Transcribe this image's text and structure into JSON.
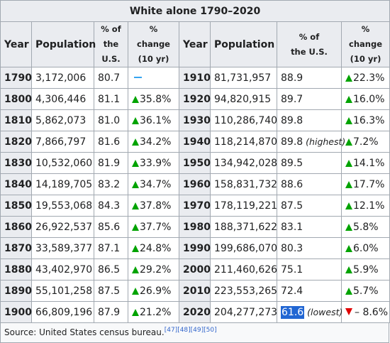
{
  "title": "White alone 1790–2020",
  "headers": {
    "year": "Year",
    "population": "Population",
    "pct_line1": "% of",
    "pct_line2": "the U.S.",
    "chg_line1": "% change",
    "chg_line2": "(10 yr)"
  },
  "rows": [
    {
      "left": {
        "year": "1790",
        "population": "3,172,006",
        "pct": "80.7",
        "change": "",
        "trend": "none"
      },
      "right": {
        "year": "1910",
        "population": "81,731,957",
        "pct": "88.9",
        "change": "22.3%",
        "trend": "up"
      }
    },
    {
      "left": {
        "year": "1800",
        "population": "4,306,446",
        "pct": "81.1",
        "change": "35.8%",
        "trend": "up"
      },
      "right": {
        "year": "1920",
        "population": "94,820,915",
        "pct": "89.7",
        "change": "16.0%",
        "trend": "up"
      }
    },
    {
      "left": {
        "year": "1810",
        "population": "5,862,073",
        "pct": "81.0",
        "change": "36.1%",
        "trend": "up"
      },
      "right": {
        "year": "1930",
        "population": "110,286,740",
        "pct": "89.8",
        "change": "16.3%",
        "trend": "up"
      }
    },
    {
      "left": {
        "year": "1820",
        "population": "7,866,797",
        "pct": "81.6",
        "change": "34.2%",
        "trend": "up"
      },
      "right": {
        "year": "1940",
        "population": "118,214,870",
        "pct": "89.8",
        "note": "(highest)",
        "change": "7.2%",
        "trend": "up"
      }
    },
    {
      "left": {
        "year": "1830",
        "population": "10,532,060",
        "pct": "81.9",
        "change": "33.9%",
        "trend": "up"
      },
      "right": {
        "year": "1950",
        "population": "134,942,028",
        "pct": "89.5",
        "change": "14.1%",
        "trend": "up"
      }
    },
    {
      "left": {
        "year": "1840",
        "population": "14,189,705",
        "pct": "83.2",
        "change": "34.7%",
        "trend": "up"
      },
      "right": {
        "year": "1960",
        "population": "158,831,732",
        "pct": "88.6",
        "change": "17.7%",
        "trend": "up"
      }
    },
    {
      "left": {
        "year": "1850",
        "population": "19,553,068",
        "pct": "84.3",
        "change": "37.8%",
        "trend": "up"
      },
      "right": {
        "year": "1970",
        "population": "178,119,221",
        "pct": "87.5",
        "change": "12.1%",
        "trend": "up"
      }
    },
    {
      "left": {
        "year": "1860",
        "population": "26,922,537",
        "pct": "85.6",
        "change": "37.7%",
        "trend": "up"
      },
      "right": {
        "year": "1980",
        "population": "188,371,622",
        "pct": "83.1",
        "change": "5.8%",
        "trend": "up"
      }
    },
    {
      "left": {
        "year": "1870",
        "population": "33,589,377",
        "pct": "87.1",
        "change": "24.8%",
        "trend": "up"
      },
      "right": {
        "year": "1990",
        "population": "199,686,070",
        "pct": "80.3",
        "change": "6.0%",
        "trend": "up"
      }
    },
    {
      "left": {
        "year": "1880",
        "population": "43,402,970",
        "pct": "86.5",
        "change": "29.2%",
        "trend": "up"
      },
      "right": {
        "year": "2000",
        "population": "211,460,626",
        "pct": "75.1",
        "change": "5.9%",
        "trend": "up"
      }
    },
    {
      "left": {
        "year": "1890",
        "population": "55,101,258",
        "pct": "87.5",
        "change": "26.9%",
        "trend": "up"
      },
      "right": {
        "year": "2010",
        "population": "223,553,265",
        "pct": "72.4",
        "change": "5.7%",
        "trend": "up"
      }
    },
    {
      "left": {
        "year": "1900",
        "population": "66,809,196",
        "pct": "87.9",
        "change": "21.2%",
        "trend": "up"
      },
      "right": {
        "year": "2020",
        "population": "204,277,273",
        "pct": "61.6",
        "pct_selected": true,
        "note": "(lowest)",
        "change": "– 8.6%",
        "trend": "down"
      }
    }
  ],
  "source": {
    "text": "Source: United States census bureau.",
    "refs": [
      "[47]",
      "[48]",
      "[49]",
      "[50]"
    ]
  },
  "colors": {
    "up_arrow": "#00a300",
    "down_arrow": "#e00000",
    "no_change_dash": "#36a4f0",
    "selection": "#2166d3",
    "header_bg": "#eaecf0",
    "link": "#3366cc"
  }
}
